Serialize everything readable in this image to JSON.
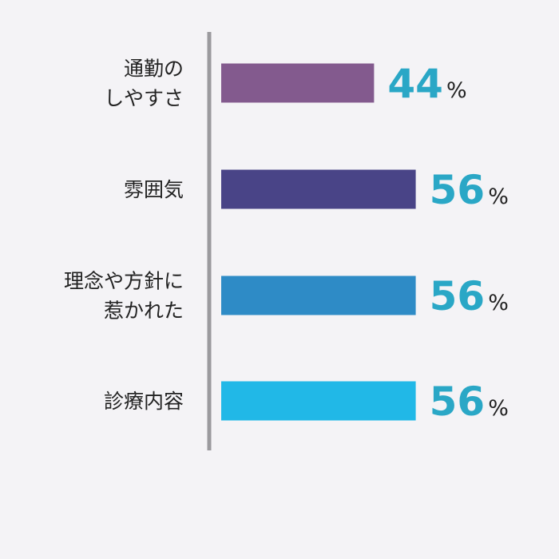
{
  "chart_data": {
    "type": "bar",
    "orientation": "horizontal",
    "categories": [
      [
        "通勤の",
        "しやすさ"
      ],
      [
        "雰囲気"
      ],
      [
        "理念や方針に",
        "惹かれた"
      ],
      [
        "診療内容"
      ]
    ],
    "values": [
      44,
      56,
      56,
      56
    ],
    "unit": "%",
    "bar_colors": [
      "#835a8e",
      "#494487",
      "#2e8bc6",
      "#21b8e7"
    ],
    "value_color": "#2aa7c6",
    "axis_color": "#9b9a9e",
    "xlim": [
      0,
      100
    ],
    "grid": false,
    "legend": "none"
  }
}
